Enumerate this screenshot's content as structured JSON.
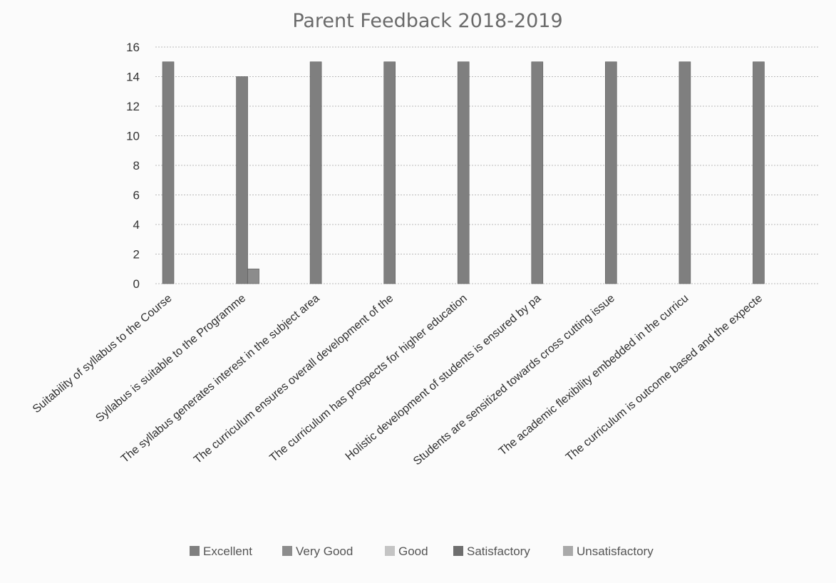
{
  "chart_data": {
    "type": "bar",
    "title": "Parent Feedback 2018-2019",
    "xlabel": "",
    "ylabel": "",
    "ylim": [
      0,
      16
    ],
    "yticks": [
      "0",
      "2",
      "4",
      "6",
      "8",
      "10",
      "12",
      "14",
      "16"
    ],
    "grid": true,
    "legend_position": "bottom",
    "categories": [
      "Suitability of syllabus to the Course",
      "Syllabus is suitable to the Programme",
      "The syllabus generates interest in the subject area",
      "The curriculum ensures overall development of the",
      "The curriculum has prospects for higher education",
      "Holistic development of students is ensured by pa",
      "Students are sensitized towards cross cutting issue",
      "The  academic  flexibility embedded  in the curricu",
      "The  curriculum is outcome based and the expecte"
    ],
    "series": [
      {
        "name": "Excellent",
        "color": "#7f7f7f",
        "values": [
          15,
          14,
          15,
          15,
          15,
          15,
          15,
          15,
          15
        ]
      },
      {
        "name": "Very Good",
        "color": "#8c8c8c",
        "values": [
          0,
          1,
          0,
          0,
          0,
          0,
          0,
          0,
          0
        ]
      },
      {
        "name": "Good",
        "color": "#c4c4c4",
        "values": [
          0,
          0,
          0,
          0,
          0,
          0,
          0,
          0,
          0
        ]
      },
      {
        "name": "Satisfactory",
        "color": "#6e6e6e",
        "values": [
          0,
          0,
          0,
          0,
          0,
          0,
          0,
          0,
          0
        ]
      },
      {
        "name": "Unsatisfactory",
        "color": "#a9a9a9",
        "values": [
          0,
          0,
          0,
          0,
          0,
          0,
          0,
          0,
          0
        ]
      }
    ]
  }
}
